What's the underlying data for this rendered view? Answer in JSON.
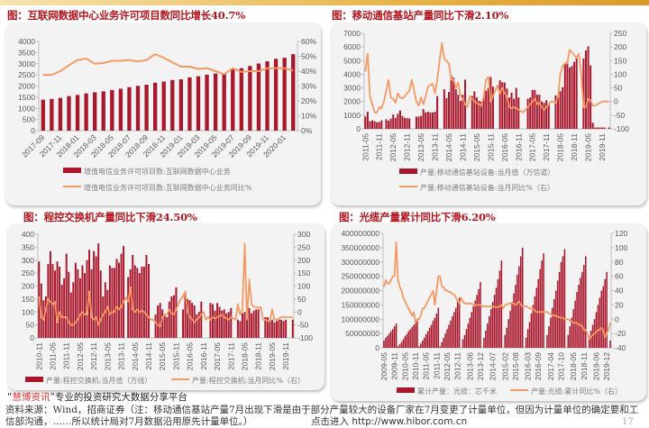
{
  "colors": {
    "bar": "#a8172c",
    "line": "#f59a64",
    "title": "#b3141c"
  },
  "footer": {
    "brand_prefix": "“",
    "brand": "慧博资讯",
    "brand_suffix": "”专业的投资研究大数据分享平台",
    "source_line1": "资料来源：Wind，招商证券（注：移动通信基站产量7月出现下滑是由于部分产量较大的设备厂家在7月变更了计量单位，但因为计量单位的确定要和工",
    "source_line2": "信部沟通，……所以统计局对7月数据沿用原先计量单位。）",
    "link": "点击进入 http://www.hibor.com.cn",
    "page_number": "17"
  },
  "chart_data": [
    {
      "type": "bar+line",
      "title": "图：互联网数据中心业务许可项目数同比增长40.7%",
      "bar_name": "增值电信业务许可项目数:互联网数据中心业务",
      "line_name": "增值电信业务许可项目数:互联网数据中心业务同比%",
      "ylim": [
        0,
        4000
      ],
      "y2lim": [
        0,
        60
      ],
      "yticks": [
        "0",
        "500",
        "1000",
        "1500",
        "2000",
        "2500",
        "3000",
        "3500",
        "4000"
      ],
      "y2ticks": [
        "0%",
        "10%",
        "20%",
        "30%",
        "40%",
        "50%",
        "60%"
      ],
      "xticks": [
        "2017-09",
        "2017-11",
        "2018-01",
        "2018-03",
        "2018-05",
        "2018-07",
        "2018-09",
        "2018-11",
        "2019-01",
        "2019-03",
        "2019-05",
        "2019-07",
        "2019-09",
        "2019-11",
        "2020-01"
      ],
      "x_start": "2017-09",
      "bars": [
        1390,
        1420,
        1470,
        1550,
        1600,
        1670,
        1720,
        1760,
        1820,
        1880,
        1950,
        2010,
        2060,
        2150,
        2200,
        2270,
        2300,
        2390,
        2440,
        2510,
        2560,
        2530,
        2760,
        2800,
        2900,
        3010,
        3110,
        3220,
        3270,
        3430
      ],
      "line": [
        37.5,
        37.5,
        40,
        44,
        47.5,
        48.5,
        45,
        45.5,
        47,
        47,
        47.5,
        46.5,
        47.5,
        51.5,
        49,
        46,
        43,
        43,
        41.5,
        42,
        40,
        38,
        42,
        39.5,
        40,
        40,
        42,
        42,
        42,
        40.5
      ]
    },
    {
      "type": "bar+line",
      "title": "图：移动通信基站产量同比下滑2.10%",
      "bar_name": "产量:移动通信基站设备:当月值（万信道）",
      "line_name": "产量:移动通信基站设备:当月同比%（右）",
      "ylim": [
        0,
        7000
      ],
      "y2lim": [
        -100,
        250
      ],
      "yticks": [
        "0",
        "1000",
        "2000",
        "3000",
        "4000",
        "5000",
        "6000",
        "7000"
      ],
      "y2ticks": [
        "-100",
        "-50",
        "0",
        "50",
        "100",
        "150",
        "200",
        "250"
      ],
      "xticks": [
        "2011-05",
        "2011-11",
        "2012-05",
        "2012-11",
        "2013-05",
        "2013-11",
        "2014-05",
        "2014-11",
        "2015-05",
        "2015-11",
        "2016-05",
        "2016-11",
        "2017-05",
        "2017-11",
        "2018-05",
        "2018-11",
        "2019-05",
        "2019-11"
      ],
      "x_start": "2011-05",
      "bars": [
        900,
        1250,
        550,
        620,
        560,
        480,
        500,
        620,
        null,
        700,
        600,
        750,
        1050,
        800,
        1100,
        1350,
        950,
        800,
        780,
        760,
        null,
        null,
        900,
        900,
        950,
        1450,
        1200,
        1250,
        1200,
        1200,
        1250,
        2400,
        null,
        null,
        2900,
        2250,
        2700,
        3900,
        3750,
        2900,
        2500,
        2050,
        2500,
        3600,
        null,
        null,
        2400,
        2750,
        2300,
        2050,
        2000,
        2450,
        2800,
        3000,
        3800,
        3100,
        null,
        null,
        3550,
        3400,
        3400,
        2950,
        2300,
        2650,
        2200,
        3000,
        2300,
        null,
        null,
        null,
        2200,
        2300,
        2850,
        2850,
        2500,
        2500,
        2000,
        1900,
        2100,
        1800,
        null,
        null,
        2450,
        2300,
        2750,
        3050,
        4800,
        4950,
        4500,
        4600,
        4900,
        5250,
        null,
        null,
        5150,
        5750,
        6050,
        4650,
        450,
        100,
        100,
        100,
        100,
        100,
        null,
        100
      ],
      "line": [
        110,
        175,
        20,
        -10,
        -40,
        -40,
        -20,
        -25,
        0,
        40,
        80,
        15,
        10,
        -5,
        30,
        15,
        12,
        20,
        30,
        40,
        80,
        40,
        0,
        -15,
        15,
        -10,
        20,
        55,
        60,
        65,
        30,
        80,
        150,
        215,
        155,
        150,
        140,
        80,
        80,
        50,
        70,
        20,
        10,
        -10,
        -20,
        20,
        10,
        0,
        -5,
        -10,
        -15,
        20,
        80,
        90,
        0,
        20,
        40,
        60,
        30,
        50,
        30,
        20,
        -20,
        -25,
        -20,
        -25,
        -30,
        -35,
        -40,
        -30,
        -20,
        -10,
        0,
        10,
        -10,
        -5,
        -20,
        -30,
        -20,
        -10,
        0,
        0,
        -5,
        20,
        100,
        130,
        140,
        140,
        190,
        180,
        170,
        160,
        175,
        100,
        -20,
        -20,
        10,
        5,
        -15,
        -15,
        -10,
        -5,
        0,
        0,
        0,
        0
      ]
    },
    {
      "type": "bar+line",
      "title": "图：程控交换机产量同比下滑24.50%",
      "bar_name": "产量:程控交换机:当月值（万线）",
      "line_name": "产量:程控交换机:当月同比%（右）",
      "ylim": [
        0,
        400
      ],
      "y2lim": [
        -100,
        300
      ],
      "yticks": [
        "0",
        "50",
        "100",
        "150",
        "200",
        "250",
        "300",
        "350",
        "400"
      ],
      "y2ticks": [
        "-100",
        "-50",
        "0",
        "50",
        "100",
        "150",
        "200",
        "250",
        "300"
      ],
      "xticks": [
        "2010-11",
        "2011-05",
        "2011-11",
        "2012-05",
        "2012-11",
        "2013-05",
        "2013-11",
        "2014-05",
        "2014-11",
        "2015-05",
        "2015-11",
        "2016-05",
        "2016-11",
        "2017-05",
        "2017-11",
        "2018-05",
        "2018-11",
        "2019-05",
        "2019-11"
      ],
      "x_start": "2010-11",
      "bars": [
        295,
        210,
        145,
        160,
        285,
        335,
        285,
        260,
        295,
        275,
        205,
        230,
        325,
        255,
        175,
        215,
        290,
        265,
        230,
        280,
        250,
        300,
        340,
        265,
        335,
        315,
        365,
        260,
        160,
        215,
        185,
        280,
        270,
        270,
        305,
        290,
        325,
        355,
        null,
        235,
        265,
        320,
        280,
        270,
        250,
        275,
        275,
        320,
        285,
        null,
        null,
        90,
        125,
        135,
        110,
        85,
        80,
        140,
        160,
        165,
        195,
        null,
        null,
        110,
        165,
        150,
        145,
        135,
        125,
        90,
        100,
        140,
        null,
        null,
        null,
        135,
        130,
        105,
        135,
        120,
        105,
        110,
        95,
        100,
        115,
        null,
        null,
        70,
        65,
        95,
        100,
        110,
        115,
        95,
        105,
        110,
        110,
        null,
        null,
        80,
        80,
        65,
        70,
        60,
        65,
        70,
        70,
        65,
        70,
        null,
        null,
        70
      ],
      "line": [
        60,
        -20,
        -30,
        10,
        50,
        40,
        30,
        40,
        -40,
        0,
        -20,
        -20,
        -20,
        -40,
        -50,
        -50,
        -40,
        -30,
        -10,
        0,
        -10,
        -10,
        80,
        -20,
        -30,
        -20,
        -50,
        -30,
        -10,
        0,
        20,
        -10,
        0,
        0,
        20,
        10,
        20,
        40,
        55,
        40,
        95,
        10,
        0,
        10,
        0,
        5,
        0,
        -10,
        -20,
        -30,
        -30,
        -40,
        -50,
        -55,
        -20,
        -10,
        -10,
        10,
        -5,
        -10,
        10,
        30,
        50,
        60,
        80,
        0,
        -20,
        -30,
        -40,
        -30,
        -20,
        -10,
        0,
        -30,
        -20,
        -30,
        -20,
        -25,
        -20,
        -15,
        -10,
        -20,
        -25,
        -30,
        -20,
        -25,
        -30,
        30,
        -10,
        10,
        265,
        -30,
        125,
        30,
        20,
        20,
        15,
        20,
        -30,
        -30,
        -35,
        -35,
        10,
        -30,
        -30,
        -25,
        -20,
        -20,
        -20,
        -20,
        -20,
        -20
      ]
    },
    {
      "type": "bar+line",
      "title": "图：光缆产量累计同比下滑6.20%",
      "bar_name": "累计产量：光缆：芯千米",
      "line_name": "产量:光缆:累计同比%（右）",
      "ylim": [
        0,
        400000000
      ],
      "y2lim": [
        -40,
        120
      ],
      "yticks": [
        "0",
        "50000000",
        "100000000",
        "150000000",
        "200000000",
        "250000000",
        "300000000",
        "350000000",
        "400000000"
      ],
      "y2ticks": [
        "-40",
        "-20",
        "0",
        "20",
        "40",
        "60",
        "80",
        "100",
        "120"
      ],
      "xticks": [
        "2009-05",
        "2009-11",
        "2010-05",
        "2010-11",
        "2011-05",
        "2011-11",
        "2012-05",
        "2012-11",
        "2013-06",
        "2013-12",
        "2014-07",
        "2015-02",
        "2015-08",
        "2016-03",
        "2016-09",
        "2017-04",
        "2017-10",
        "2018-05",
        "2018-11",
        "2019-06",
        "2019-12"
      ],
      "x_start": "2009-05",
      "bars": [
        25000000,
        35000000,
        42000000,
        50000000,
        58000000,
        65000000,
        75000000,
        85000000,
        5000000,
        12000000,
        20000000,
        30000000,
        40000000,
        48000000,
        58000000,
        65000000,
        72000000,
        80000000,
        88000000,
        95000000,
        5000000,
        15000000,
        25000000,
        35000000,
        48000000,
        58000000,
        70000000,
        80000000,
        95000000,
        105000000,
        120000000,
        140000000,
        5000000,
        20000000,
        35000000,
        50000000,
        65000000,
        80000000,
        95000000,
        110000000,
        125000000,
        140000000,
        160000000,
        175000000,
        null,
        30000000,
        45000000,
        65000000,
        85000000,
        105000000,
        125000000,
        145000000,
        165000000,
        185000000,
        205000000,
        230000000,
        null,
        35000000,
        60000000,
        85000000,
        110000000,
        135000000,
        160000000,
        185000000,
        210000000,
        240000000,
        270000000,
        305000000,
        null,
        45000000,
        70000000,
        100000000,
        130000000,
        160000000,
        190000000,
        220000000,
        255000000,
        285000000,
        320000000,
        350000000,
        null,
        35000000,
        65000000,
        90000000,
        120000000,
        150000000,
        180000000,
        210000000,
        240000000,
        275000000,
        305000000,
        330000000,
        null,
        45000000,
        75000000,
        105000000,
        140000000,
        170000000,
        200000000,
        235000000,
        265000000,
        300000000,
        320000000,
        345000000,
        null,
        45000000,
        75000000,
        105000000,
        135000000,
        165000000,
        195000000,
        220000000,
        245000000,
        265000000,
        290000000,
        320000000,
        null,
        40000000,
        60000000,
        80000000,
        100000000,
        125000000,
        150000000,
        175000000,
        200000000,
        215000000,
        240000000,
        265000000,
        null,
        25000000
      ],
      "line": [
        45,
        55,
        50,
        50,
        55,
        60,
        60,
        108,
        55,
        45,
        40,
        30,
        25,
        20,
        15,
        10,
        5,
        10,
        -5,
        0,
        0,
        5,
        15,
        15,
        20,
        25,
        30,
        35,
        40,
        20,
        40,
        60,
        60,
        45,
        45,
        40,
        40,
        38,
        38,
        35,
        35,
        30,
        25,
        22,
        30,
        25,
        22,
        22,
        22,
        22,
        22,
        20,
        20,
        20,
        20,
        20,
        18,
        18,
        18,
        18,
        18,
        18,
        18,
        17,
        17,
        17,
        18,
        20,
        15,
        20,
        20,
        22,
        22,
        22,
        22,
        20,
        22,
        25,
        20,
        18,
        18,
        18,
        17,
        15,
        15,
        15,
        12,
        10,
        10,
        10,
        10,
        10,
        10,
        10,
        8,
        8,
        5,
        5,
        5,
        3,
        3,
        2,
        2,
        0,
        0,
        0,
        -2,
        -3,
        -5,
        -5,
        -5,
        -8,
        -8,
        -10,
        -15,
        -15,
        -20,
        -28,
        -25,
        -22,
        -20,
        -18,
        -15,
        -15,
        -12,
        -15,
        -25,
        -20,
        -15,
        -5
      ]
    }
  ]
}
